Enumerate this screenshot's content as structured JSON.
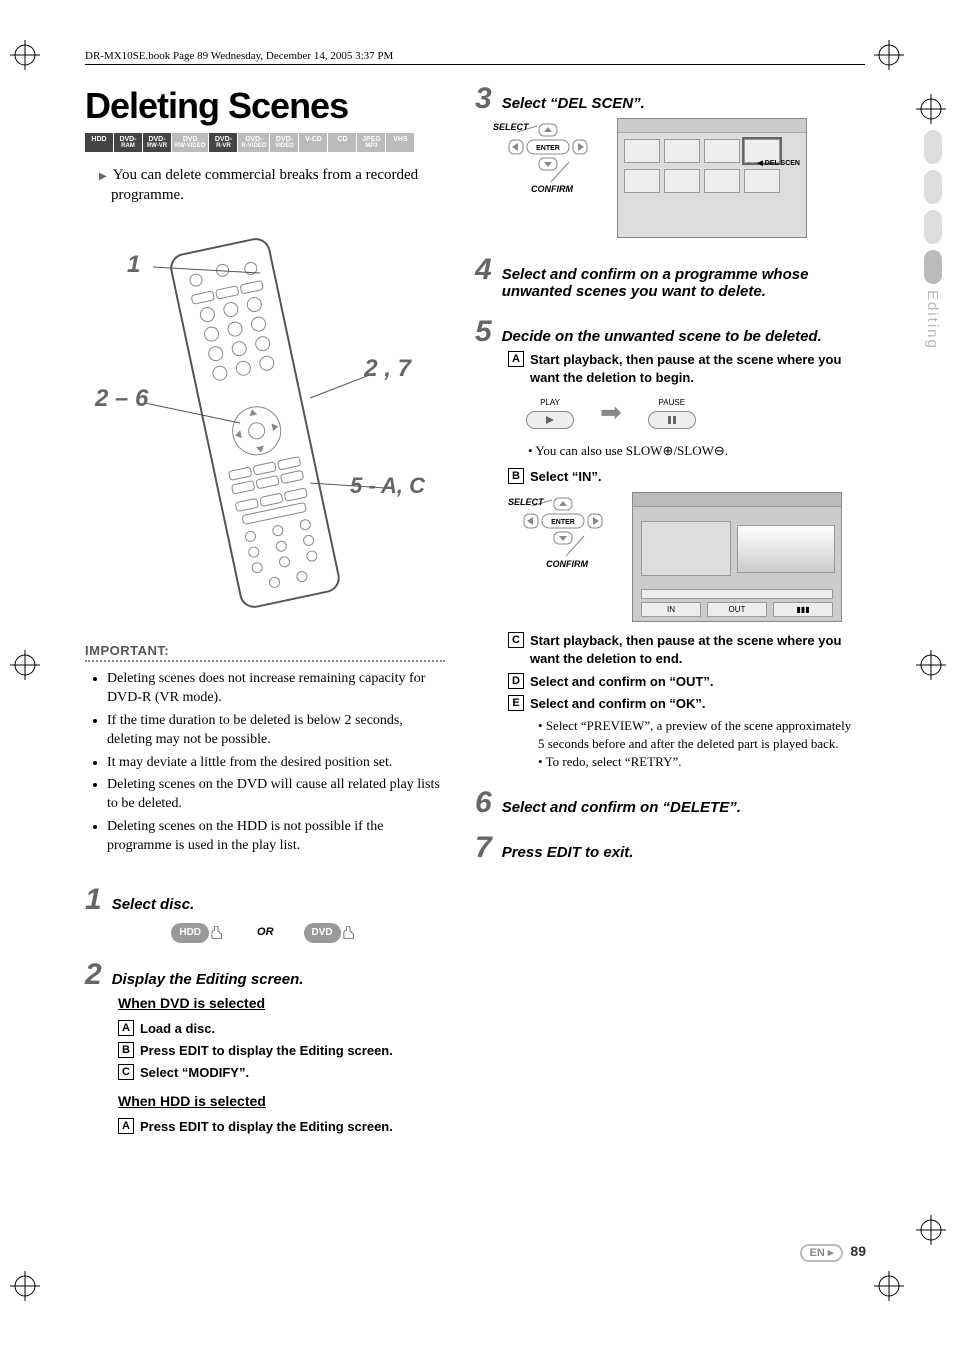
{
  "header": "DR-MX10SE.book  Page 89  Wednesday, December 14, 2005  3:37 PM",
  "title": "Deleting Scenes",
  "side_tab": "Editing",
  "page_label": "EN",
  "page_number": "89",
  "intro": "You can delete commercial breaks from a recorded programme.",
  "formats": [
    {
      "label": "HDD",
      "sub": "",
      "on": true
    },
    {
      "label": "DVD-",
      "sub": "RAM",
      "on": true
    },
    {
      "label": "DVD-",
      "sub": "RW-VR",
      "on": true
    },
    {
      "label": "DVD",
      "sub": "RW-VIDEO",
      "on": false
    },
    {
      "label": "DVD-",
      "sub": "R-VR",
      "on": true
    },
    {
      "label": "DVD-",
      "sub": "R-VIDEO",
      "on": false
    },
    {
      "label": "DVD-",
      "sub": "VIDEO",
      "on": false
    },
    {
      "label": "V-CD",
      "sub": "",
      "on": false
    },
    {
      "label": "CD",
      "sub": "",
      "on": false
    },
    {
      "label": "JPEG",
      "sub": "MP3",
      "on": false
    },
    {
      "label": "VHS",
      "sub": "",
      "on": false
    }
  ],
  "remote_callouts": {
    "c1": "1",
    "c2_6": "2 – 6",
    "c2_7": "2 , 7",
    "c5": "5 - A, C"
  },
  "important_heading": "IMPORTANT:",
  "important": [
    "Deleting scenes does not increase remaining capacity for DVD-R (VR mode).",
    "If the time duration to be deleted is below 2 seconds, deleting may not be possible.",
    "It may deviate a little from the desired position set.",
    "Deleting scenes on the DVD will cause all related play lists to be deleted.",
    "Deleting scenes on the HDD is not possible if the programme is used in the play list."
  ],
  "steps": {
    "s1": {
      "title": "Select disc.",
      "hdd": "HDD",
      "or": "OR",
      "dvd": "DVD"
    },
    "s2": {
      "title": "Display the Editing screen.",
      "sub_dvd": "When DVD is selected",
      "sub_hdd": "When HDD is selected",
      "dvd_subs": [
        {
          "n": "A",
          "t": "Load a disc."
        },
        {
          "n": "B",
          "t": "Press EDIT to display the Editing screen."
        },
        {
          "n": "C",
          "t": "Select “MODIFY”."
        }
      ],
      "hdd_subs": [
        {
          "n": "A",
          "t": "Press EDIT to display the Editing screen."
        }
      ]
    },
    "s3": {
      "title": "Select “DEL SCEN”.",
      "nav_select": "SELECT",
      "nav_confirm": "CONFIRM",
      "screen_label": "DEL SCEN"
    },
    "s4": {
      "title": "Select and confirm on a programme whose unwanted scenes you want to delete."
    },
    "s5": {
      "title": "Decide on the unwanted scene to be deleted.",
      "sub1": {
        "n": "A",
        "t": "Start playback, then pause at the scene where you want the deletion to begin."
      },
      "play": "PLAY",
      "pause": "PAUSE",
      "note_slow": "You can also use SLOW⊕/SLOW⊖.",
      "sub2": {
        "n": "B",
        "t": "Select “IN”."
      },
      "nav_select": "SELECT",
      "nav_confirm": "CONFIRM",
      "screen_in": "IN",
      "screen_out": "OUT",
      "sub3": {
        "n": "C",
        "t": "Start playback, then pause at the scene where you want the deletion to end."
      },
      "sub4": {
        "n": "D",
        "t": "Select and confirm on “OUT”."
      },
      "sub5": {
        "n": "E",
        "t": "Select and confirm on “OK”."
      },
      "note_preview": "Select “PREVIEW”, a preview of the scene approximately 5 seconds before and after the deleted part is played back.",
      "note_retry": "To redo, select “RETRY”."
    },
    "s6": {
      "title": "Select and confirm on “DELETE”."
    },
    "s7": {
      "title": "Press EDIT to exit."
    }
  },
  "colors": {
    "accent": "#666666",
    "fmt_on": "#444444",
    "fmt_off": "#bbbbbb",
    "screen_bg": "#dddddd"
  }
}
